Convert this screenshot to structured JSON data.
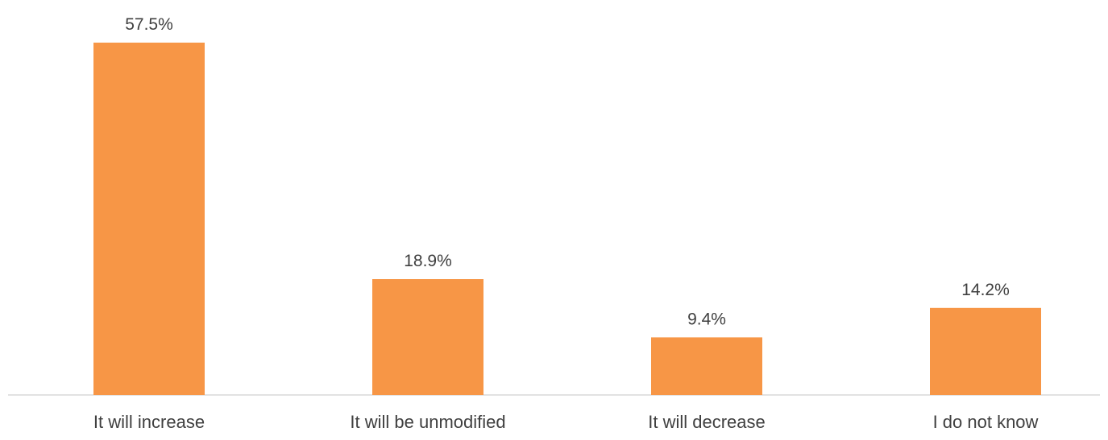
{
  "chart_data": {
    "type": "bar",
    "title": "",
    "xlabel": "",
    "ylabel": "",
    "categories": [
      "It will increase",
      "It will be unmodified",
      "It will decrease",
      "I do not know"
    ],
    "values": [
      57.5,
      18.9,
      9.4,
      14.2
    ],
    "value_labels": [
      "57.5%",
      "18.9%",
      "9.4%",
      "14.2%"
    ],
    "unit": "%",
    "ylim": [
      0,
      57.5
    ],
    "grid": false,
    "legend": "none",
    "bar_color": "#F79646",
    "axis_color": "#D9D9D9",
    "text_color": "#404040"
  }
}
